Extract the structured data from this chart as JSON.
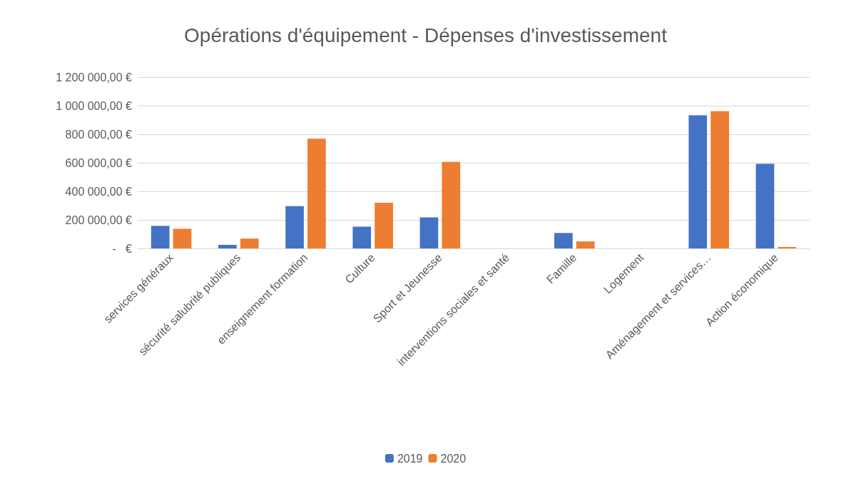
{
  "chart_data": {
    "type": "bar",
    "title": "Opérations d'équipement - Dépenses d'investissement",
    "categories": [
      "services généraux",
      "sécurité salubrité publiques",
      "enseignement formation",
      "Culture",
      "Sport et Jeunesse",
      "interventions sociales et santé",
      "Famille",
      "Logement",
      "Aménagement et services…",
      "Action économique"
    ],
    "series": [
      {
        "name": "2019",
        "color": "#4472c4",
        "values": [
          158000,
          25000,
          296000,
          153000,
          217000,
          0,
          108000,
          0,
          932000,
          592000
        ]
      },
      {
        "name": "2020",
        "color": "#ed7d31",
        "values": [
          138000,
          69000,
          769000,
          320000,
          606000,
          0,
          49000,
          0,
          961000,
          10000
        ]
      }
    ],
    "ylim": [
      0,
      1200000
    ],
    "yticks": [
      {
        "value": 0,
        "label": "-   €"
      },
      {
        "value": 200000,
        "label": "200 000,00 €"
      },
      {
        "value": 400000,
        "label": "400 000,00 €"
      },
      {
        "value": 600000,
        "label": "600 000,00 €"
      },
      {
        "value": 800000,
        "label": "800 000,00 €"
      },
      {
        "value": 1000000,
        "label": "1 000 000,00 €"
      },
      {
        "value": 1200000,
        "label": "1 200 000,00 €"
      }
    ],
    "grid": "y",
    "legend": "bottom"
  }
}
